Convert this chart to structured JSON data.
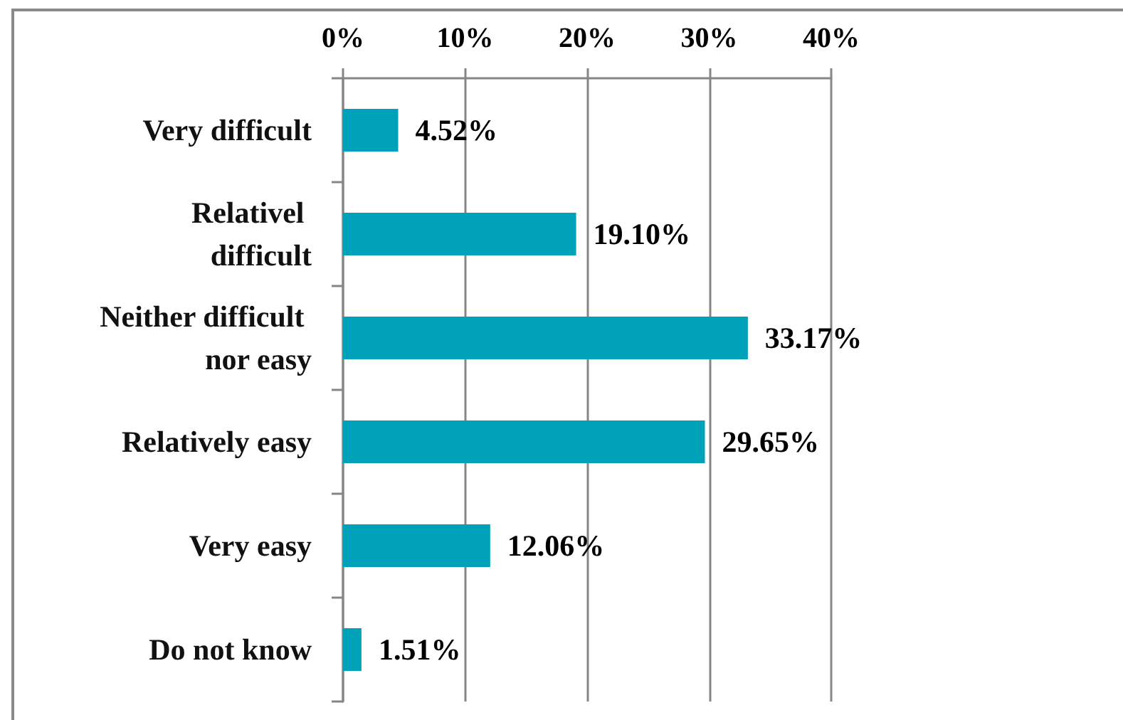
{
  "chart_data": {
    "type": "bar",
    "orientation": "horizontal",
    "categories": [
      "Very difficult",
      "Relativel difficult",
      "Neither difficult nor easy",
      "Relatively easy",
      "Very easy",
      "Do not know"
    ],
    "values": [
      4.52,
      19.1,
      33.17,
      29.65,
      12.06,
      1.51
    ],
    "value_labels": [
      "4.52%",
      "19.10%",
      "33.17%",
      "29.65%",
      "12.06%",
      "1.51%"
    ],
    "color": "#00a2ba",
    "xlim": [
      0,
      40
    ],
    "xticks": [
      {
        "value": 0,
        "label": "0%"
      },
      {
        "value": 10,
        "label": "10%"
      },
      {
        "value": 20,
        "label": "20%"
      },
      {
        "value": 30,
        "label": "30%"
      },
      {
        "value": 40,
        "label": "40%"
      }
    ],
    "grid": "x"
  }
}
